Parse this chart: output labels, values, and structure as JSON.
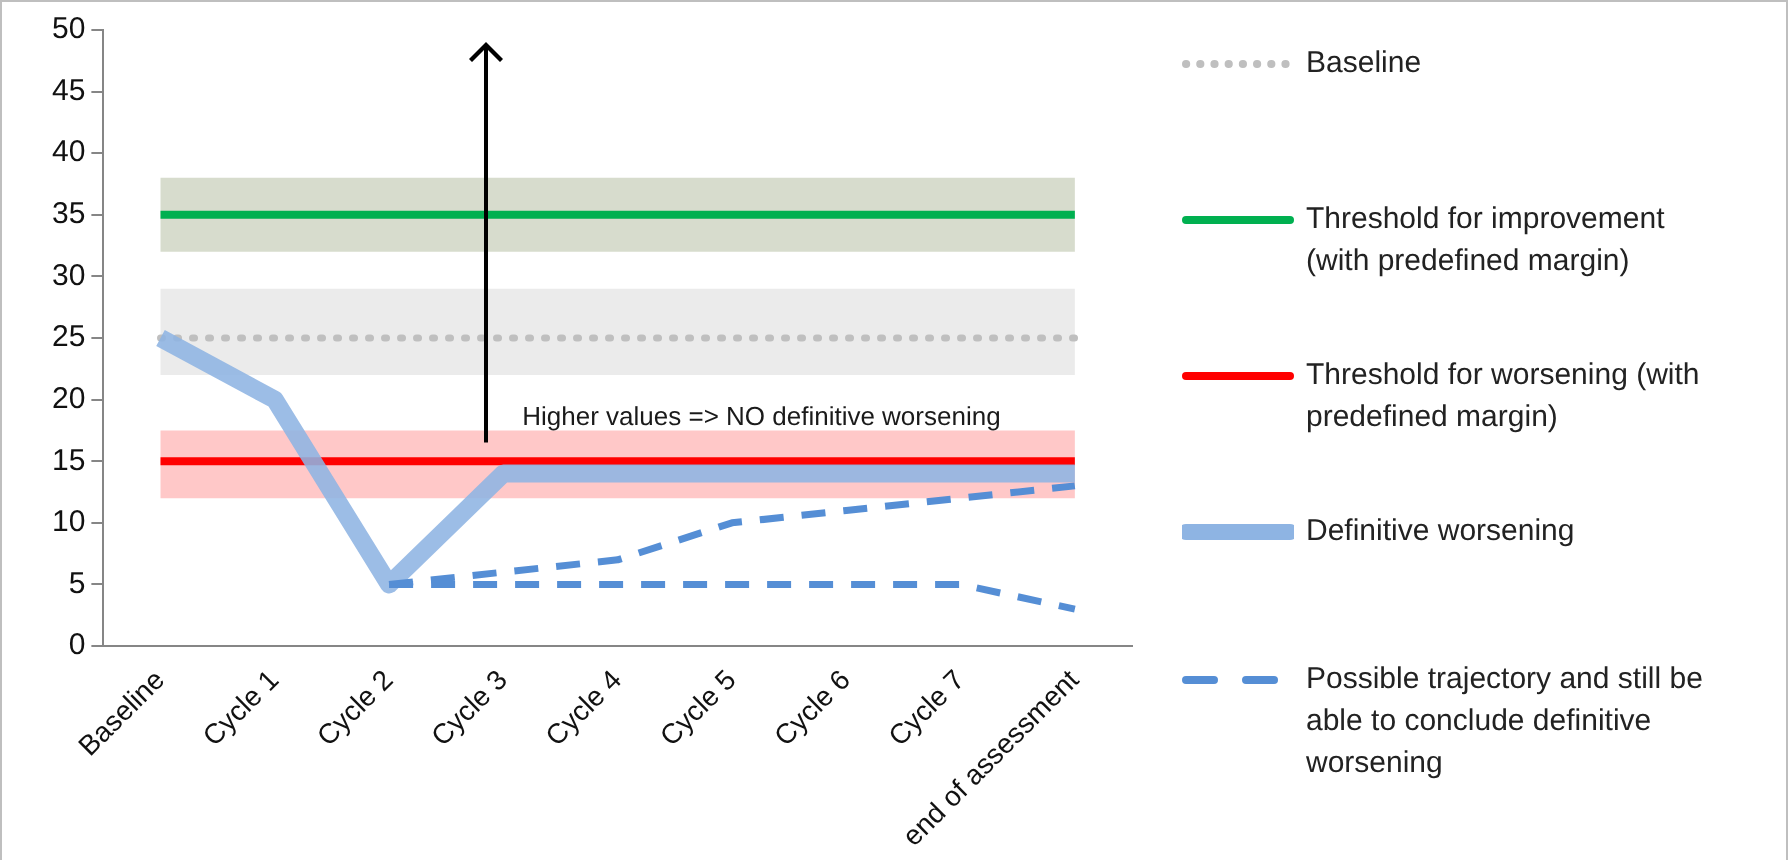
{
  "chart_data": {
    "type": "line",
    "categories": [
      "Baseline",
      "Cycle 1",
      "Cycle 2",
      "Cycle 3",
      "Cycle 4",
      "Cycle 5",
      "Cycle 6",
      "Cycle 7",
      "end of assessment"
    ],
    "series": [
      {
        "name": "Baseline",
        "color": "#bfbfbf",
        "line_style": "dotted",
        "values": [
          25,
          25,
          25,
          25,
          25,
          25,
          25,
          25,
          25
        ]
      },
      {
        "name": "Threshold for improvement (with predefined margin)",
        "color": "#00b050",
        "line_style": "solid",
        "values": [
          35,
          35,
          35,
          35,
          35,
          35,
          35,
          35,
          35
        ]
      },
      {
        "name": "Threshold for worsening (with predefined margin)",
        "color": "#ff0000",
        "line_style": "solid",
        "values": [
          15,
          15,
          15,
          15,
          15,
          15,
          15,
          15,
          15
        ]
      },
      {
        "name": "Definitive worsening",
        "color": "#8eb4e3",
        "line_style": "solid",
        "values": [
          25,
          20,
          5,
          14,
          14,
          14,
          14,
          14,
          14
        ]
      },
      {
        "name": "Possible trajectory and still be able to conclude definitive worsening",
        "color": "#558ed5",
        "line_style": "dashed",
        "values": [
          null,
          null,
          5,
          6,
          7,
          10,
          11,
          12,
          13
        ]
      },
      {
        "color": "#558ed5",
        "line_style": "dashed",
        "values": [
          null,
          null,
          5,
          5,
          5,
          5,
          5,
          5,
          3
        ]
      }
    ],
    "bands": [
      {
        "axis": "y",
        "from": 32,
        "to": 38,
        "color": "#d7dccd"
      },
      {
        "axis": "y",
        "from": 22,
        "to": 29,
        "color": "#ebebeb"
      },
      {
        "axis": "y",
        "from": 12,
        "to": 17.5,
        "color": "#ffc8c8"
      }
    ],
    "annotations": [
      "Higher values => NO definitive worsening"
    ],
    "ylim": [
      0,
      50
    ],
    "yticks": [
      0,
      5,
      10,
      15,
      20,
      25,
      30,
      35,
      40,
      45,
      50
    ],
    "grid": false,
    "legend": "right",
    "marker": "none"
  }
}
